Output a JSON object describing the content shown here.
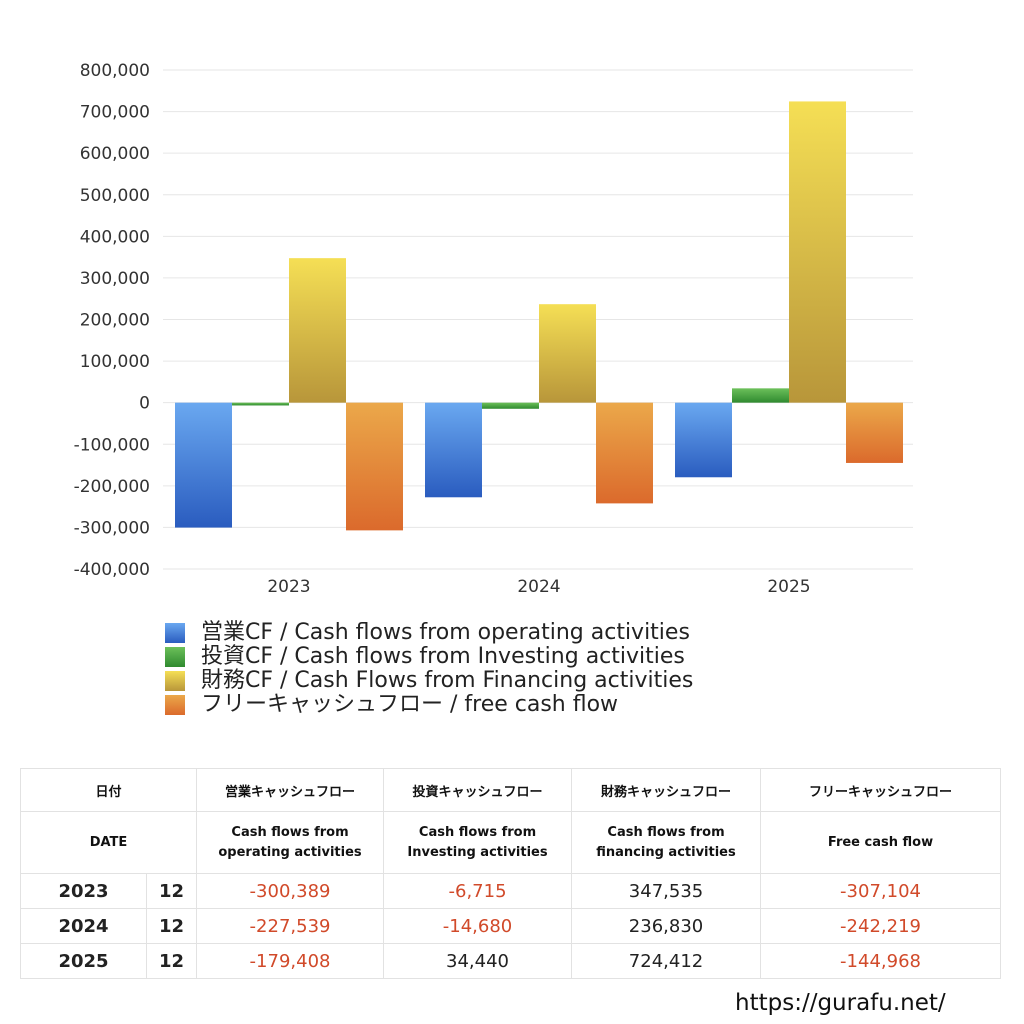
{
  "chart_data": {
    "type": "bar",
    "categories": [
      "2023",
      "2024",
      "2025"
    ],
    "series": [
      {
        "name": "営業CF / Cash flows from operating activities",
        "values": [
          -300389,
          -227539,
          -179408
        ],
        "color_top": "#6aa8f0",
        "color_bottom": "#2a5cbf"
      },
      {
        "name": "投資CF / Cash flows from Investing activities",
        "values": [
          -6715,
          -14680,
          34440
        ],
        "color_top": "#6cc05a",
        "color_bottom": "#2f8a2f"
      },
      {
        "name": "財務CF / Cash Flows from Financing activities",
        "values": [
          347535,
          236830,
          724412
        ],
        "color_top": "#f5df55",
        "color_bottom": "#b8963a"
      },
      {
        "name": "フリーキャッシュフロー / free cash flow",
        "values": [
          -307104,
          -242219,
          -144968
        ],
        "color_top": "#eba84a",
        "color_bottom": "#db6a2c"
      }
    ],
    "ylim": [
      -400000,
      800000
    ],
    "yticks": [
      "800,000",
      "700,000",
      "600,000",
      "500,000",
      "400,000",
      "300,000",
      "200,000",
      "100,000",
      "0",
      "-100,000",
      "-200,000",
      "-300,000",
      "-400,000"
    ],
    "ytick_values": [
      800000,
      700000,
      600000,
      500000,
      400000,
      300000,
      200000,
      100000,
      0,
      -100000,
      -200000,
      -300000,
      -400000
    ],
    "grid": true,
    "legend_position": "bottom"
  },
  "table": {
    "header_row1": [
      "日付",
      "営業キャッシュフロー",
      "投資キャッシュフロー",
      "財務キャッシュフロー",
      "フリーキャッシュフロー"
    ],
    "header_row2": [
      "DATE",
      "Cash flows from\noperating activities",
      "Cash flows from\nInvesting activities",
      "Cash flows from\nfinancing activities",
      "Free cash flow"
    ],
    "rows": [
      {
        "year": "2023",
        "month": "12",
        "values": [
          "-300,389",
          "-6,715",
          "347,535",
          "-307,104"
        ]
      },
      {
        "year": "2024",
        "month": "12",
        "values": [
          "-227,539",
          "-14,680",
          "236,830",
          "-242,219"
        ]
      },
      {
        "year": "2025",
        "month": "12",
        "values": [
          "-179,408",
          "34,440",
          "724,412",
          "-144,968"
        ]
      }
    ]
  },
  "footer": {
    "site": "https://gurafu.net/"
  }
}
